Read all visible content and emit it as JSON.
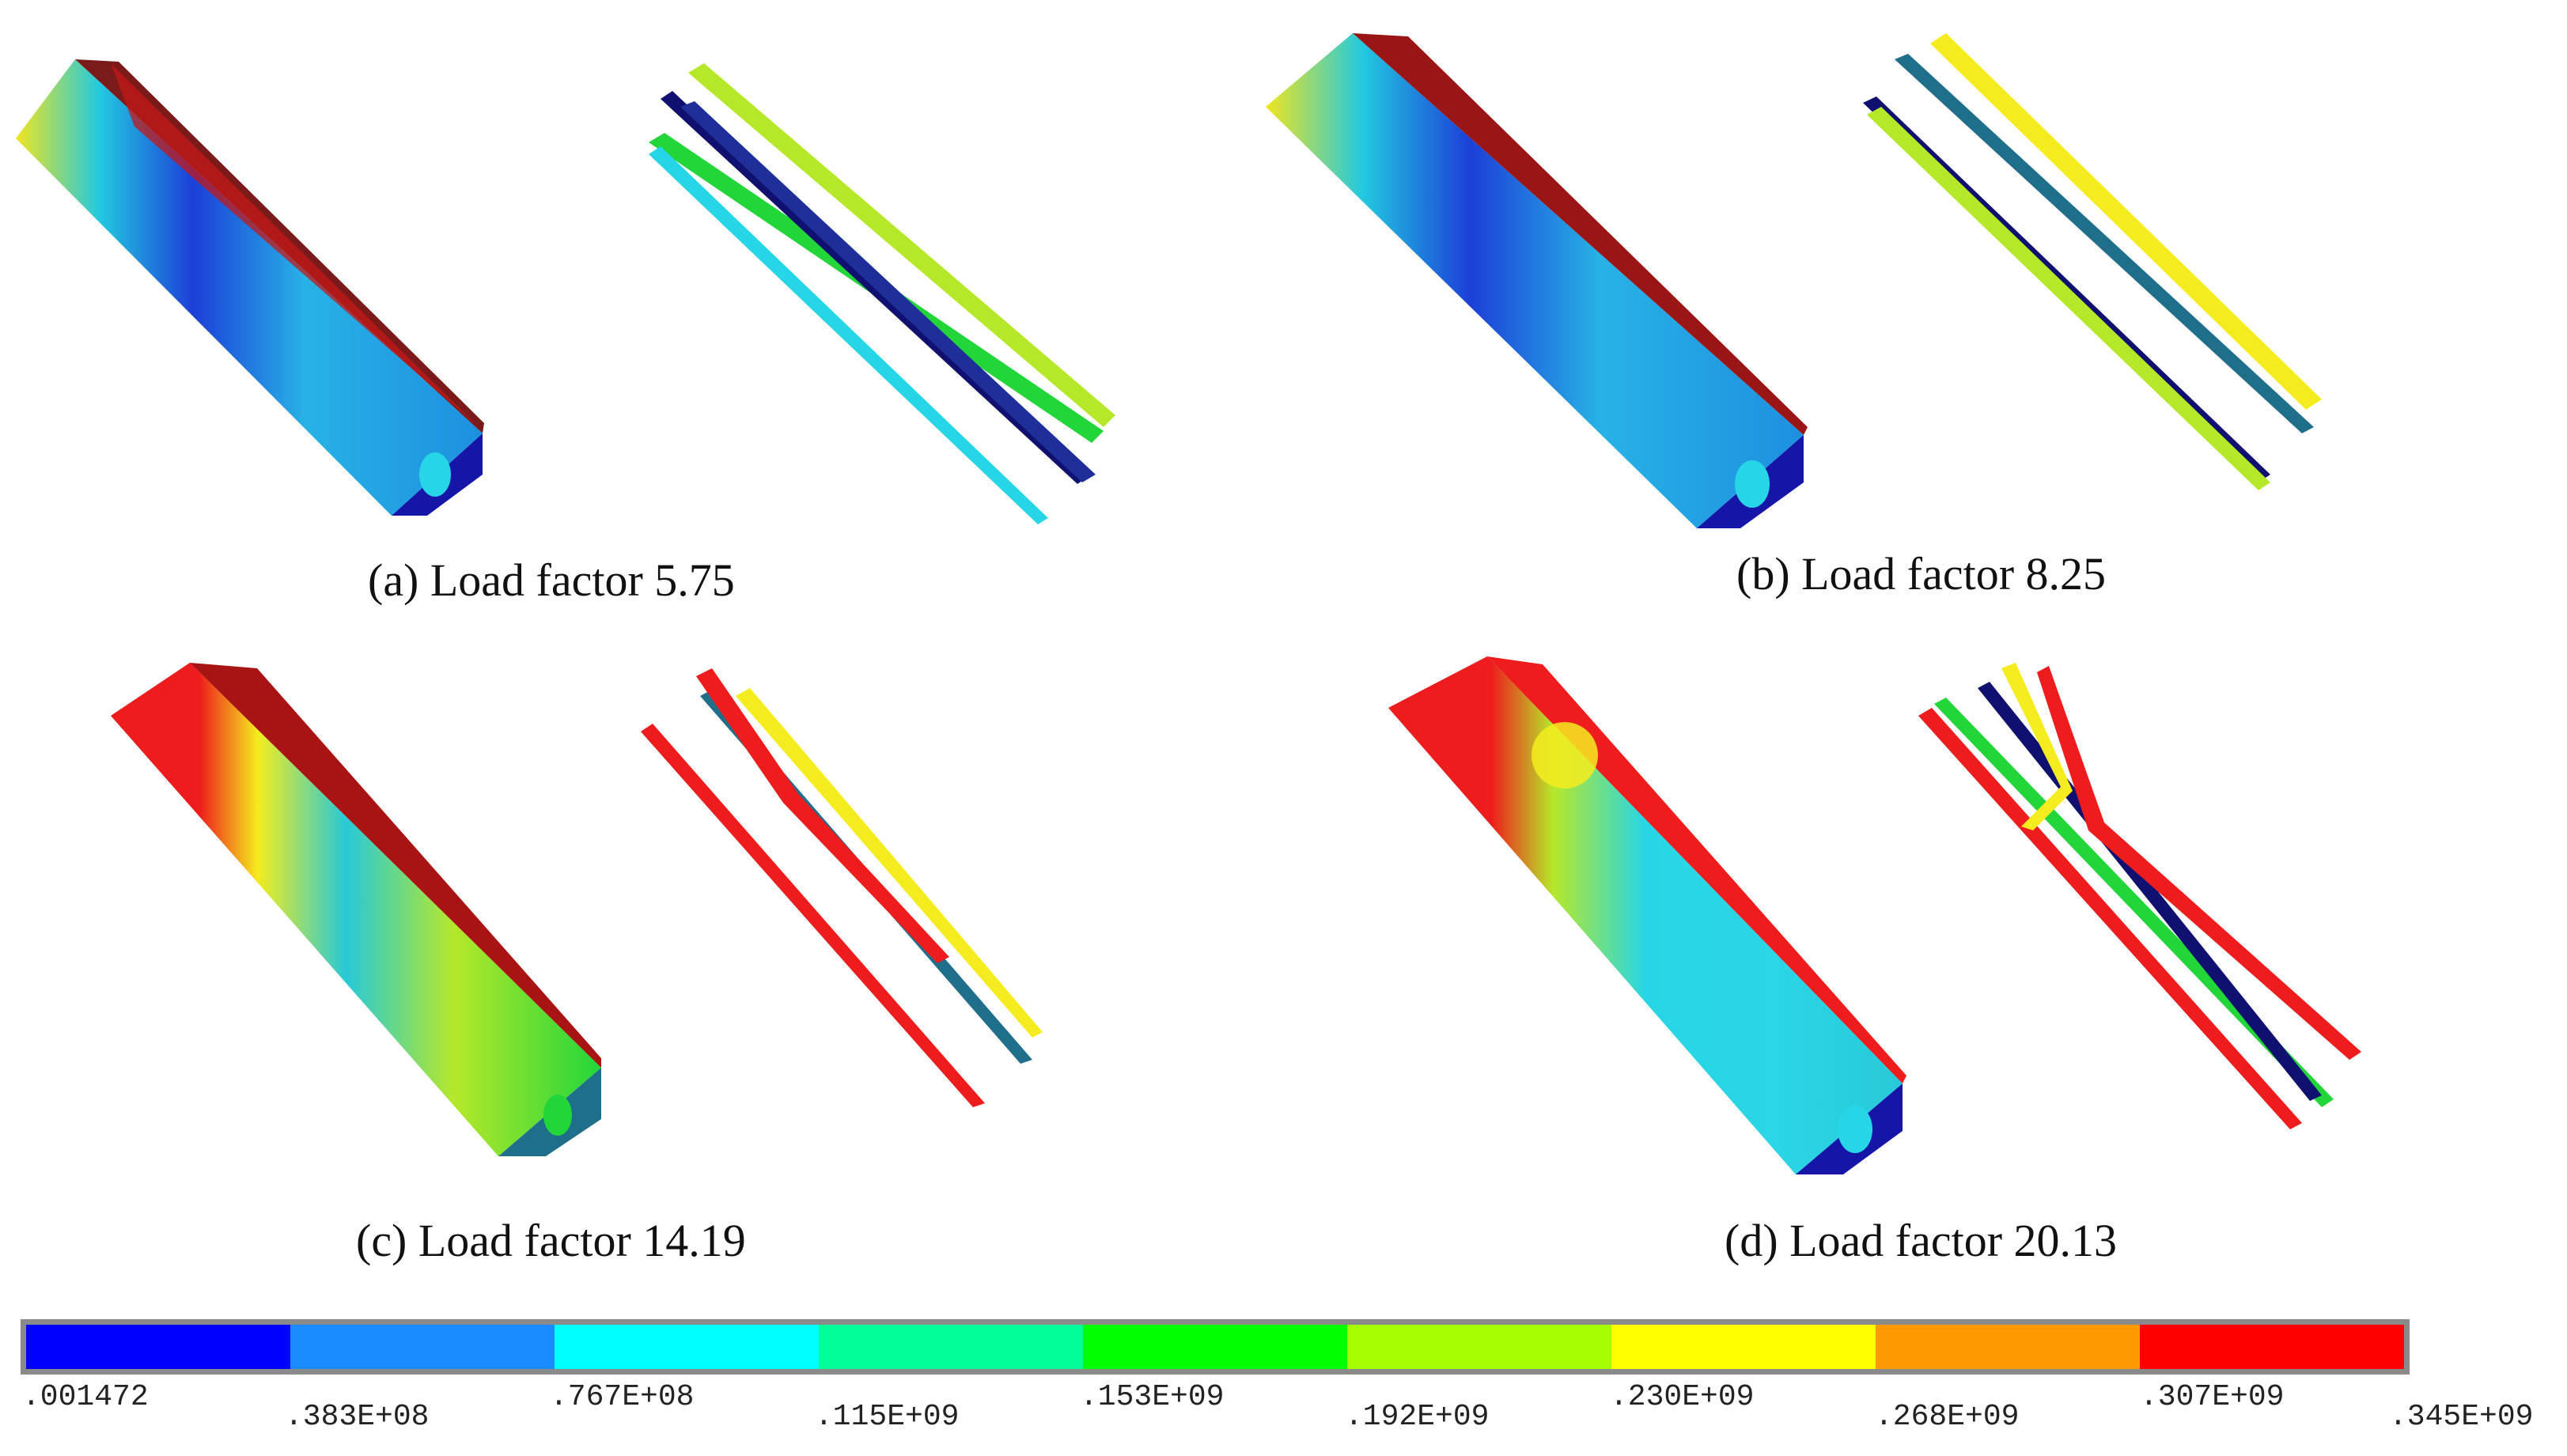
{
  "captions": [
    "(a) Load factor 5.75",
    "(b) Load factor 8.25",
    "(c) Load factor 14.19",
    "(d) Load factor 20.13"
  ],
  "legend": {
    "colors": [
      "#0000ff",
      "#1a8cff",
      "#00ffff",
      "#00ff99",
      "#00ff00",
      "#a6ff00",
      "#ffff00",
      "#ff9900",
      "#ff0000"
    ],
    "ticks": [
      ".001472",
      ".383E+08",
      ".767E+08",
      ".115E+09",
      ".153E+09",
      ".192E+09",
      ".230E+09",
      ".268E+09",
      ".307E+09",
      ".345E+09"
    ]
  },
  "palette": {
    "dark_blue": "#1515a8",
    "mid_blue": "#2b8be0",
    "cyan": "#27d6e6",
    "teal": "#1fe0b0",
    "green": "#22d63a",
    "lime": "#b6e82a",
    "yellow": "#f4ec1e",
    "orange": "#f39a1c",
    "red": "#ee1c1c",
    "dark_red": "#a81414",
    "deep_navy": "#101070",
    "steel": "#1f6f8a"
  }
}
